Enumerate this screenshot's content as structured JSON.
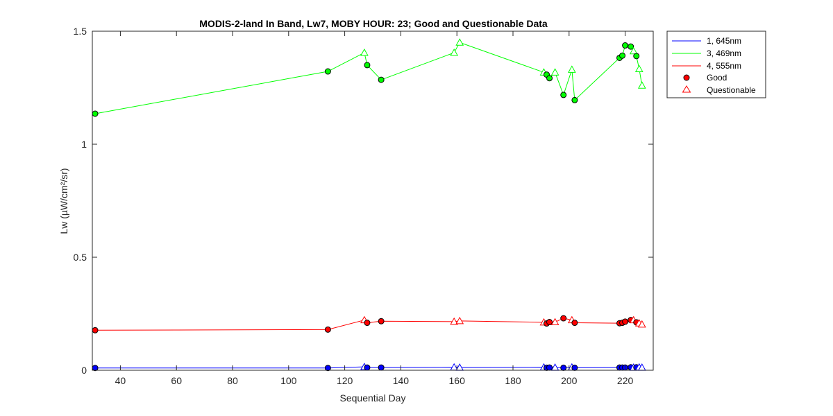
{
  "chart_data": {
    "type": "line",
    "title": "MODIS-2-land In Band,  Lw7, MOBY HOUR: 23;  Good and Questionable Data",
    "xlabel": "Sequential Day",
    "ylabel": "Lw (µW/cm²/sr)",
    "xlim": [
      30,
      230
    ],
    "ylim": [
      0,
      1.5
    ],
    "xticks": [
      40,
      60,
      80,
      100,
      120,
      140,
      160,
      180,
      200,
      220
    ],
    "yticks": [
      0,
      0.5,
      1,
      1.5
    ],
    "ytick_labels": [
      "0",
      "0.5",
      "1",
      "1.5"
    ],
    "grid": false,
    "legend_position": "outside-top-right",
    "markers": {
      "good": "filled circle",
      "questionable": "open triangle"
    },
    "series": [
      {
        "name": "1, 645nm",
        "color": "#0000ff",
        "points": [
          {
            "x": 31,
            "y": 0.01,
            "q": "good"
          },
          {
            "x": 114,
            "y": 0.01,
            "q": "good"
          },
          {
            "x": 127,
            "y": 0.015,
            "q": "questionable"
          },
          {
            "x": 128,
            "y": 0.012,
            "q": "good"
          },
          {
            "x": 133,
            "y": 0.012,
            "q": "good"
          },
          {
            "x": 159,
            "y": 0.013,
            "q": "questionable"
          },
          {
            "x": 161,
            "y": 0.012,
            "q": "questionable"
          },
          {
            "x": 191,
            "y": 0.013,
            "q": "questionable"
          },
          {
            "x": 192,
            "y": 0.011,
            "q": "good"
          },
          {
            "x": 193,
            "y": 0.012,
            "q": "good"
          },
          {
            "x": 195,
            "y": 0.012,
            "q": "questionable"
          },
          {
            "x": 198,
            "y": 0.011,
            "q": "good"
          },
          {
            "x": 201,
            "y": 0.013,
            "q": "questionable"
          },
          {
            "x": 202,
            "y": 0.011,
            "q": "good"
          },
          {
            "x": 218,
            "y": 0.012,
            "q": "good"
          },
          {
            "x": 219,
            "y": 0.012,
            "q": "good"
          },
          {
            "x": 220,
            "y": 0.012,
            "q": "good"
          },
          {
            "x": 222,
            "y": 0.013,
            "q": "good"
          },
          {
            "x": 223,
            "y": 0.012,
            "q": "questionable"
          },
          {
            "x": 224,
            "y": 0.013,
            "q": "good"
          },
          {
            "x": 225,
            "y": 0.013,
            "q": "questionable"
          },
          {
            "x": 226,
            "y": 0.012,
            "q": "questionable"
          }
        ]
      },
      {
        "name": "3, 469nm",
        "color": "#00ff00",
        "points": [
          {
            "x": 31,
            "y": 1.135,
            "q": "good"
          },
          {
            "x": 114,
            "y": 1.322,
            "q": "good"
          },
          {
            "x": 127,
            "y": 1.405,
            "q": "questionable"
          },
          {
            "x": 128,
            "y": 1.35,
            "q": "good"
          },
          {
            "x": 133,
            "y": 1.285,
            "q": "good"
          },
          {
            "x": 159,
            "y": 1.405,
            "q": "questionable"
          },
          {
            "x": 161,
            "y": 1.45,
            "q": "questionable"
          },
          {
            "x": 191,
            "y": 1.318,
            "q": "questionable"
          },
          {
            "x": 192,
            "y": 1.308,
            "q": "good"
          },
          {
            "x": 193,
            "y": 1.292,
            "q": "good"
          },
          {
            "x": 195,
            "y": 1.318,
            "q": "questionable"
          },
          {
            "x": 198,
            "y": 1.218,
            "q": "good"
          },
          {
            "x": 201,
            "y": 1.33,
            "q": "questionable"
          },
          {
            "x": 202,
            "y": 1.195,
            "q": "good"
          },
          {
            "x": 218,
            "y": 1.382,
            "q": "good"
          },
          {
            "x": 219,
            "y": 1.392,
            "q": "good"
          },
          {
            "x": 220,
            "y": 1.437,
            "q": "good"
          },
          {
            "x": 222,
            "y": 1.432,
            "q": "good"
          },
          {
            "x": 223,
            "y": 1.412,
            "q": "questionable"
          },
          {
            "x": 224,
            "y": 1.39,
            "q": "good"
          },
          {
            "x": 225,
            "y": 1.333,
            "q": "questionable"
          },
          {
            "x": 226,
            "y": 1.26,
            "q": "questionable"
          }
        ]
      },
      {
        "name": "4, 555nm",
        "color": "#ff0000",
        "points": [
          {
            "x": 31,
            "y": 0.177,
            "q": "good"
          },
          {
            "x": 114,
            "y": 0.18,
            "q": "good"
          },
          {
            "x": 127,
            "y": 0.222,
            "q": "questionable"
          },
          {
            "x": 128,
            "y": 0.21,
            "q": "good"
          },
          {
            "x": 133,
            "y": 0.217,
            "q": "good"
          },
          {
            "x": 159,
            "y": 0.215,
            "q": "questionable"
          },
          {
            "x": 161,
            "y": 0.218,
            "q": "questionable"
          },
          {
            "x": 191,
            "y": 0.212,
            "q": "questionable"
          },
          {
            "x": 192,
            "y": 0.207,
            "q": "good"
          },
          {
            "x": 193,
            "y": 0.213,
            "q": "good"
          },
          {
            "x": 195,
            "y": 0.213,
            "q": "questionable"
          },
          {
            "x": 198,
            "y": 0.23,
            "q": "good"
          },
          {
            "x": 201,
            "y": 0.222,
            "q": "questionable"
          },
          {
            "x": 202,
            "y": 0.21,
            "q": "good"
          },
          {
            "x": 218,
            "y": 0.208,
            "q": "good"
          },
          {
            "x": 219,
            "y": 0.21,
            "q": "good"
          },
          {
            "x": 220,
            "y": 0.215,
            "q": "good"
          },
          {
            "x": 222,
            "y": 0.222,
            "q": "good"
          },
          {
            "x": 223,
            "y": 0.222,
            "q": "questionable"
          },
          {
            "x": 224,
            "y": 0.212,
            "q": "good"
          },
          {
            "x": 225,
            "y": 0.208,
            "q": "questionable"
          },
          {
            "x": 226,
            "y": 0.203,
            "q": "questionable"
          }
        ]
      }
    ],
    "legend": {
      "entries": [
        "1, 645nm",
        "3, 469nm",
        "4, 555nm",
        "Good",
        "Questionable"
      ]
    }
  }
}
